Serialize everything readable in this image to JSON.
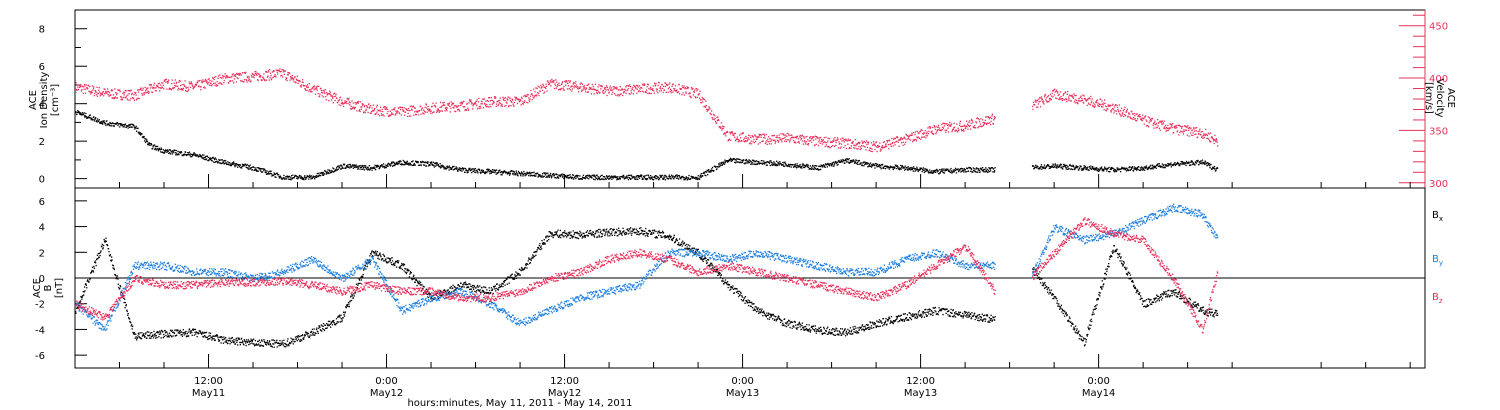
{
  "chart_data": [
    {
      "type": "scatter",
      "panel": "top",
      "ylabel_left": [
        "ACE",
        "Ion Density",
        "[cm⁻³]"
      ],
      "ylabel_right": [
        "ACE",
        "Velocity",
        "[km/s]"
      ],
      "ylim_left": [
        -0.5,
        9
      ],
      "ylim_right": [
        295,
        465
      ],
      "yticks_left": [
        "0",
        "2",
        "4",
        "6",
        "8"
      ],
      "yticks_right": [
        "300",
        "350",
        "400",
        "450"
      ],
      "colors": {
        "density": "#000000",
        "velocity": "#e8305a"
      },
      "series": [
        {
          "name": "Ion Density",
          "axis": "left",
          "x_hours": [
            0,
            2,
            4,
            5,
            6,
            8,
            10,
            12,
            14,
            16,
            18,
            20,
            22,
            24,
            26,
            28,
            30,
            32,
            34,
            36,
            38,
            40,
            42,
            44,
            46,
            48,
            50,
            52,
            54,
            56,
            58,
            60,
            62,
            64,
            66,
            68,
            70,
            72,
            74,
            76,
            77
          ],
          "values": [
            3.6,
            3.0,
            2.8,
            1.8,
            1.5,
            1.3,
            0.9,
            0.6,
            0.1,
            0.1,
            0.7,
            0.6,
            0.9,
            0.8,
            0.5,
            0.4,
            0.3,
            0.2,
            0.1,
            0.1,
            0.1,
            0.1,
            0.1,
            1.0,
            0.9,
            0.8,
            0.6,
            1.0,
            0.7,
            0.6,
            0.4,
            0.5,
            0.5,
            0.6,
            0.7,
            0.6,
            0.5,
            0.6,
            0.8,
            0.9,
            0.5
          ]
        },
        {
          "name": "Velocity",
          "axis": "right",
          "x_hours": [
            0,
            2,
            4,
            6,
            8,
            10,
            12,
            14,
            16,
            18,
            20,
            22,
            24,
            26,
            28,
            30,
            32,
            34,
            36,
            38,
            40,
            42,
            44,
            46,
            48,
            50,
            52,
            54,
            56,
            58,
            60,
            62,
            64,
            66,
            68,
            70,
            72,
            74,
            76,
            77
          ],
          "values": [
            392,
            386,
            384,
            395,
            392,
            400,
            402,
            405,
            390,
            378,
            370,
            368,
            372,
            374,
            378,
            378,
            395,
            392,
            388,
            390,
            392,
            385,
            345,
            342,
            343,
            340,
            338,
            335,
            342,
            352,
            355,
            362,
            370,
            385,
            380,
            372,
            360,
            352,
            348,
            340
          ]
        }
      ]
    },
    {
      "type": "scatter",
      "panel": "bottom",
      "ylabel_left": [
        "ACE",
        "B",
        "[nT]"
      ],
      "ylim": [
        -7,
        7
      ],
      "yticks_left": [
        "-6",
        "-4",
        "-2",
        "0",
        "2",
        "4",
        "6"
      ],
      "legend": [
        "B",
        "B",
        "B"
      ],
      "legend_subscripts": [
        "x",
        "y",
        "z"
      ],
      "legend_placement": "right",
      "colors": {
        "Bx": "#000000",
        "By": "#1e7fe0",
        "Bz": "#e8305a"
      },
      "series": [
        {
          "name": "Bx",
          "x_hours": [
            0,
            2,
            4,
            6,
            8,
            10,
            12,
            14,
            16,
            18,
            20,
            22,
            24,
            26,
            28,
            30,
            32,
            34,
            36,
            38,
            40,
            42,
            44,
            46,
            48,
            50,
            52,
            54,
            56,
            58,
            60,
            62,
            64,
            66,
            68,
            70,
            72,
            74,
            76,
            77
          ],
          "values": [
            -2.5,
            3.0,
            -4.5,
            -4.3,
            -4.2,
            -4.8,
            -5.0,
            -5.1,
            -4.2,
            -3.0,
            2.0,
            1.0,
            -1.5,
            -0.5,
            -1.0,
            0.5,
            3.5,
            3.4,
            3.6,
            3.7,
            3.3,
            2.0,
            -0.5,
            -2.5,
            -3.5,
            -4.0,
            -4.2,
            -3.5,
            -3.0,
            -2.5,
            -2.8,
            -3.2,
            1.5,
            -1.5,
            -5.0,
            2.5,
            -2.0,
            -1.0,
            -2.5,
            -2.8
          ]
        },
        {
          "name": "By",
          "x_hours": [
            0,
            2,
            4,
            6,
            8,
            10,
            12,
            14,
            16,
            18,
            20,
            22,
            24,
            26,
            28,
            30,
            32,
            34,
            36,
            38,
            40,
            42,
            44,
            46,
            48,
            50,
            52,
            54,
            56,
            58,
            60,
            62,
            64,
            66,
            68,
            70,
            72,
            74,
            76,
            77
          ],
          "values": [
            -2.0,
            -4.0,
            1.0,
            1.0,
            0.5,
            0.5,
            0.0,
            0.5,
            1.5,
            0.0,
            1.5,
            -2.5,
            -1.5,
            -1.0,
            -2.0,
            -3.5,
            -2.5,
            -1.5,
            -1.0,
            -0.5,
            2.0,
            2.0,
            1.5,
            2.0,
            1.5,
            1.0,
            0.5,
            0.5,
            1.5,
            2.0,
            1.0,
            1.0,
            -1.0,
            4.0,
            3.0,
            3.5,
            4.5,
            5.5,
            5.0,
            3.0
          ]
        },
        {
          "name": "Bz",
          "x_hours": [
            0,
            2,
            4,
            6,
            8,
            10,
            12,
            14,
            16,
            18,
            20,
            22,
            24,
            26,
            28,
            30,
            32,
            34,
            36,
            38,
            40,
            42,
            44,
            46,
            48,
            50,
            52,
            54,
            56,
            58,
            60,
            62,
            64,
            66,
            68,
            70,
            72,
            74,
            76,
            77
          ],
          "values": [
            -2.0,
            -3.0,
            0.0,
            -0.5,
            -0.5,
            -0.3,
            -0.3,
            -0.2,
            -0.5,
            -1.0,
            -0.5,
            -1.0,
            -1.0,
            -1.5,
            -1.5,
            -1.0,
            0.0,
            0.5,
            1.5,
            2.0,
            1.5,
            0.5,
            1.0,
            0.5,
            0.0,
            -0.5,
            -1.0,
            -1.5,
            -0.5,
            1.0,
            2.5,
            -1.0,
            -0.5,
            2.0,
            4.5,
            3.5,
            3.0,
            0.0,
            -4.0,
            0.5
          ]
        }
      ]
    }
  ],
  "x_axis": {
    "xlim_hours": [
      0,
      91
    ],
    "xlabel": "hours:minutes, May 11, 2011 - May 14, 2011",
    "major_ticks": [
      {
        "hour": 9,
        "time": "12:00",
        "date": "May11"
      },
      {
        "hour": 21,
        "time": "0:00",
        "date": "May12"
      },
      {
        "hour": 33,
        "time": "12:00",
        "date": "May12"
      },
      {
        "hour": 45,
        "time": "0:00",
        "date": "May13"
      },
      {
        "hour": 57,
        "time": "12:00",
        "date": "May13"
      },
      {
        "hour": 69,
        "time": "0:00",
        "date": "May14"
      }
    ]
  }
}
